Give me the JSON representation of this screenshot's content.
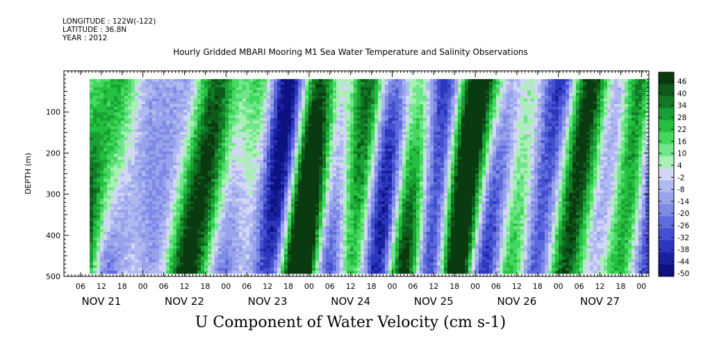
{
  "header": {
    "longitude": "LONGITUDE : 122W(-122)",
    "latitude": "LATITUDE : 36.8N",
    "year": "YEAR : 2012"
  },
  "chart_data": {
    "type": "heatmap",
    "title": "Hourly Gridded MBARI Mooring M1 Sea Water Temperature and Salinity Observations",
    "xlabel": "U Component of Water Velocity (cm s-1)",
    "ylabel": "DEPTH (m)",
    "ylim": [
      500,
      0
    ],
    "yticks": [
      100,
      200,
      300,
      400,
      500
    ],
    "x_hour_ticks": [
      "06",
      "12",
      "18",
      "00",
      "06",
      "12",
      "18",
      "00",
      "06",
      "12",
      "18",
      "00",
      "06",
      "12",
      "18",
      "00",
      "06",
      "12",
      "18",
      "00",
      "06",
      "12",
      "18",
      "00",
      "06",
      "12",
      "18",
      "00"
    ],
    "x_date_ticks": [
      "NOV 21",
      "NOV 22",
      "NOV 23",
      "NOV 24",
      "NOV 25",
      "NOV 26",
      "NOV 27"
    ],
    "colorbar_ticks": [
      46,
      40,
      34,
      28,
      22,
      16,
      10,
      4,
      -2,
      -8,
      -14,
      -20,
      -26,
      -32,
      -38,
      -44,
      -50
    ],
    "colorbar_colors": [
      "#0a3a10",
      "#0d5a1a",
      "#127a25",
      "#18a032",
      "#25c040",
      "#45d860",
      "#70e68a",
      "#a8f0b4",
      "#d2d7f5",
      "#b0b9f0",
      "#98a3ec",
      "#7f8ae6",
      "#5f6bdc",
      "#4350cf",
      "#2d36bd",
      "#1a21a0",
      "#0c1280"
    ],
    "depth_range_m": [
      20,
      490
    ],
    "value_range": [
      -50,
      52
    ]
  }
}
